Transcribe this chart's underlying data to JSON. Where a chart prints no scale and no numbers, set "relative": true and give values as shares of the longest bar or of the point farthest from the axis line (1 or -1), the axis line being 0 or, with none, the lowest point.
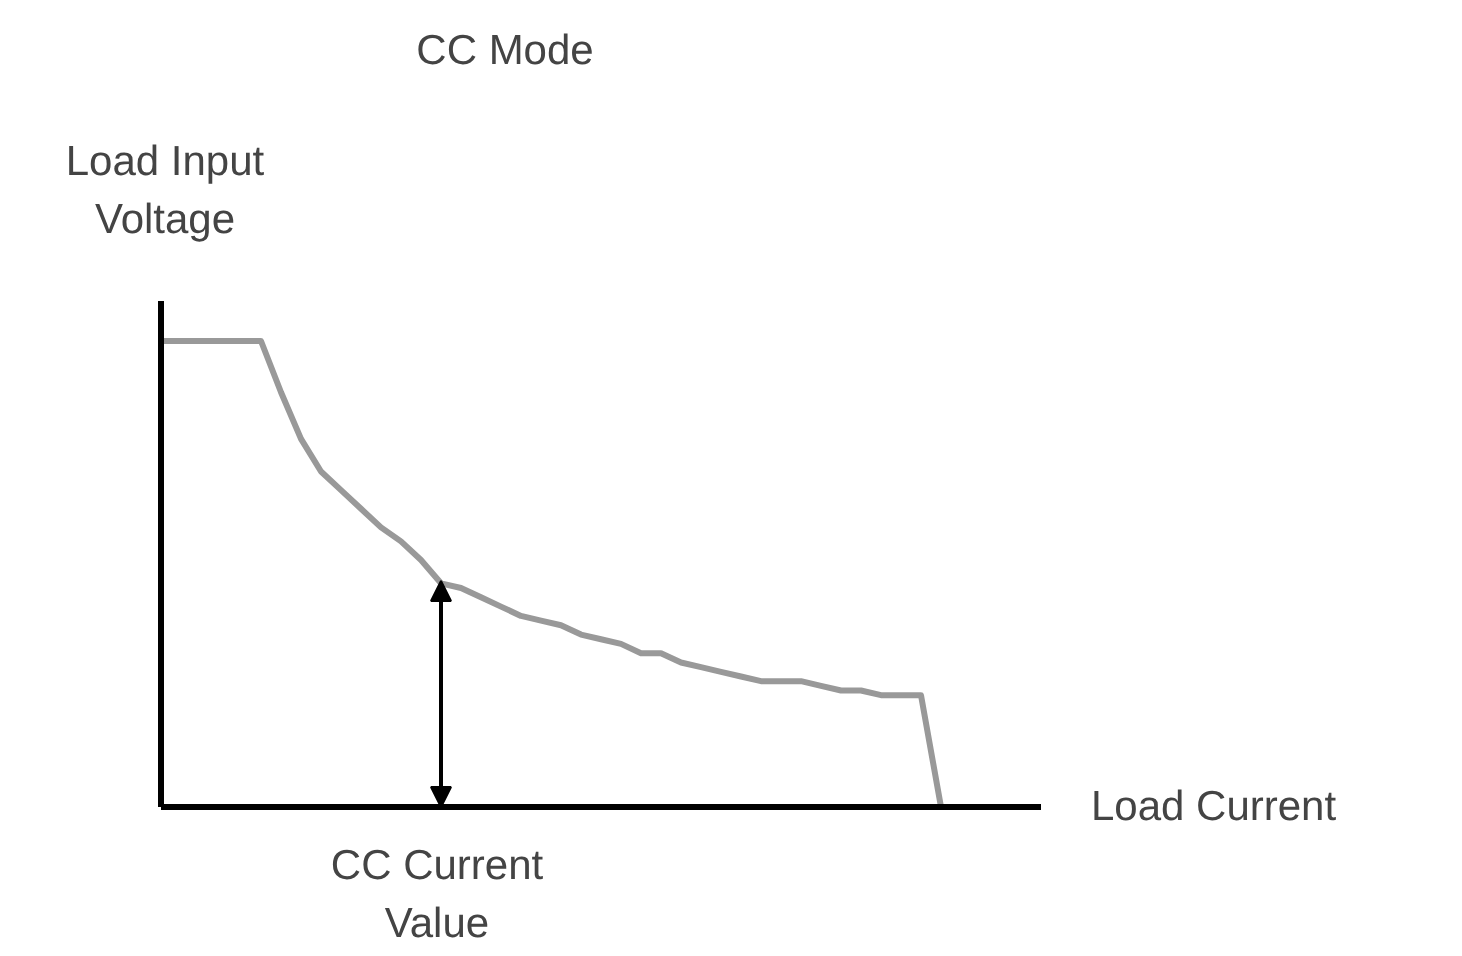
{
  "chart_data": {
    "type": "line",
    "title": "CC Mode",
    "ylabel": "Load Input Voltage",
    "xlabel": "Load Current",
    "relative": true,
    "color": "#999999",
    "categories": [
      null,
      null,
      null,
      null,
      null,
      null,
      null,
      null,
      null,
      null,
      null,
      null,
      null,
      null,
      null,
      null,
      null,
      null,
      null,
      null,
      null,
      null,
      null,
      null,
      null,
      null,
      null,
      null,
      null,
      null,
      null,
      null,
      null,
      null,
      null,
      null,
      null,
      null,
      null,
      null
    ],
    "values": [
      1,
      1,
      1,
      1,
      1,
      1,
      0.89,
      0.79,
      0.72,
      0.68,
      0.64,
      0.6,
      0.57,
      0.53,
      0.48,
      0.47,
      0.45,
      0.43,
      0.41,
      0.4,
      0.39,
      0.37,
      0.36,
      0.35,
      0.33,
      0.33,
      0.31,
      0.3,
      0.29,
      0.28,
      0.27,
      0.27,
      0.27,
      0.26,
      0.25,
      0.25,
      0.24,
      0.24,
      0.24,
      0
    ],
    "annotations": [
      "CC Current Value"
    ],
    "grid": false,
    "marker": "none",
    "line_style": "solid"
  }
}
